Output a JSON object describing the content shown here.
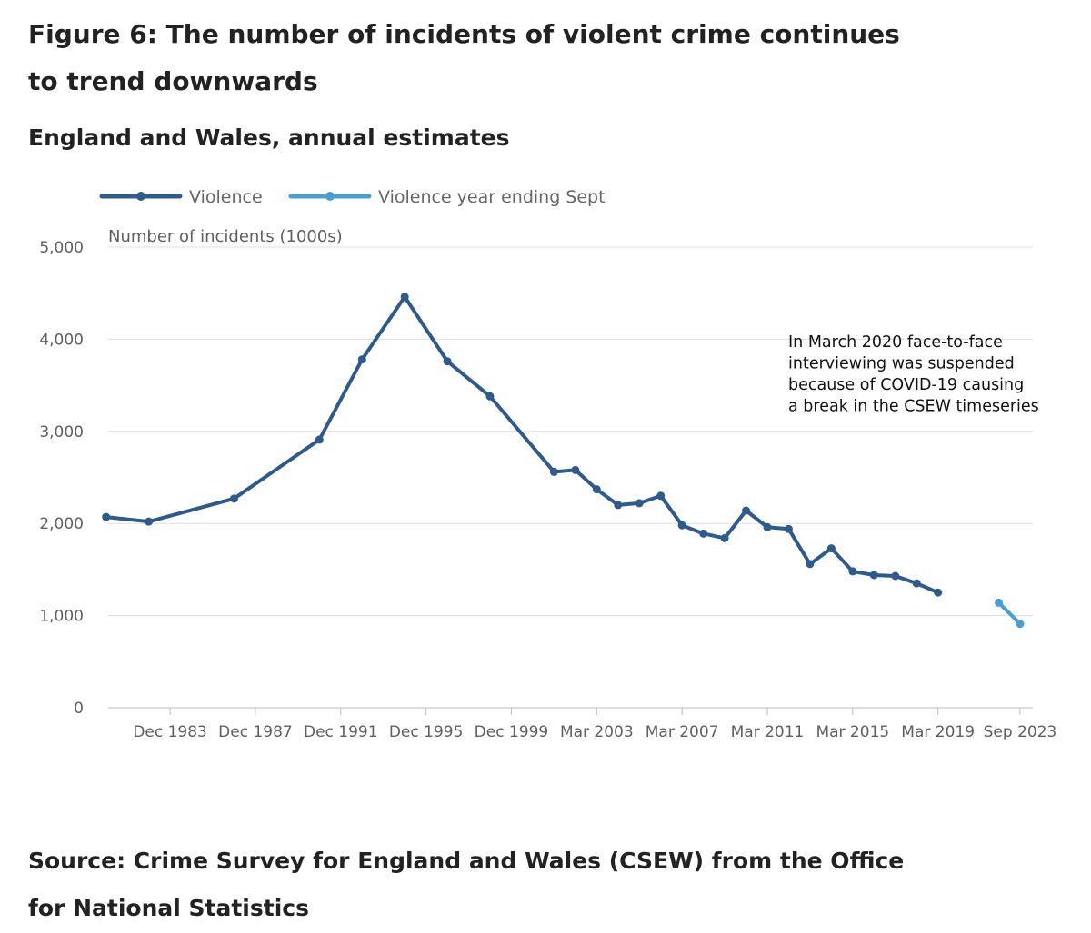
{
  "title": "Figure 6: The number of incidents of violent crime continues to trend downwards",
  "subtitle": "England and Wales, annual estimates",
  "source": "Source: Crime Survey for England and Wales (CSEW) from the Office for National Statistics",
  "chart_data": {
    "type": "line",
    "ylabel": "Number of incidents (1000s)",
    "ylim": [
      0,
      5000
    ],
    "yticks": [
      0,
      1000,
      2000,
      3000,
      4000,
      5000
    ],
    "ytick_labels": [
      "0",
      "1,000",
      "2,000",
      "3,000",
      "4,000",
      "5,000"
    ],
    "xlim": [
      1980.4,
      2023.75
    ],
    "xticks": [
      {
        "value": 1983.9,
        "label": "Dec 1983"
      },
      {
        "value": 1987.9,
        "label": "Dec 1987"
      },
      {
        "value": 1991.9,
        "label": "Dec 1991"
      },
      {
        "value": 1995.9,
        "label": "Dec 1995"
      },
      {
        "value": 1999.9,
        "label": "Dec 1999"
      },
      {
        "value": 2003.9,
        "label": "Mar 2003"
      },
      {
        "value": 2007.9,
        "label": "Mar 2007"
      },
      {
        "value": 2011.9,
        "label": "Mar 2011"
      },
      {
        "value": 2015.9,
        "label": "Mar 2015"
      },
      {
        "value": 2019.9,
        "label": "Mar 2019"
      },
      {
        "value": 2023.75,
        "label": "Sep 2023"
      }
    ],
    "series": [
      {
        "name": "Violence",
        "color": "#2e5b8c",
        "x": [
          1980.9,
          1982.9,
          1986.9,
          1990.9,
          1992.9,
          1994.9,
          1996.9,
          1998.9,
          2001.9,
          2002.9,
          2003.9,
          2004.9,
          2005.9,
          2006.9,
          2007.9,
          2008.9,
          2009.9,
          2010.9,
          2011.9,
          2012.9,
          2013.9,
          2014.9,
          2015.9,
          2016.9,
          2017.9,
          2018.9,
          2019.9
        ],
        "values": [
          2070,
          2020,
          2270,
          2910,
          3780,
          4460,
          3760,
          3380,
          2560,
          2580,
          2370,
          2200,
          2220,
          2300,
          1980,
          1890,
          1840,
          2140,
          1960,
          1940,
          1560,
          1730,
          1480,
          1440,
          1430,
          1350,
          1250
        ]
      },
      {
        "name": "Violence year ending Sept",
        "color": "#4a9fd0",
        "x": [
          2022.75,
          2023.75
        ],
        "values": [
          1140,
          910
        ]
      }
    ],
    "annotation": [
      "In March 2020 face-to-face",
      "interviewing was suspended",
      "because of COVID-19 causing",
      "a break in the CSEW timeseries"
    ]
  }
}
